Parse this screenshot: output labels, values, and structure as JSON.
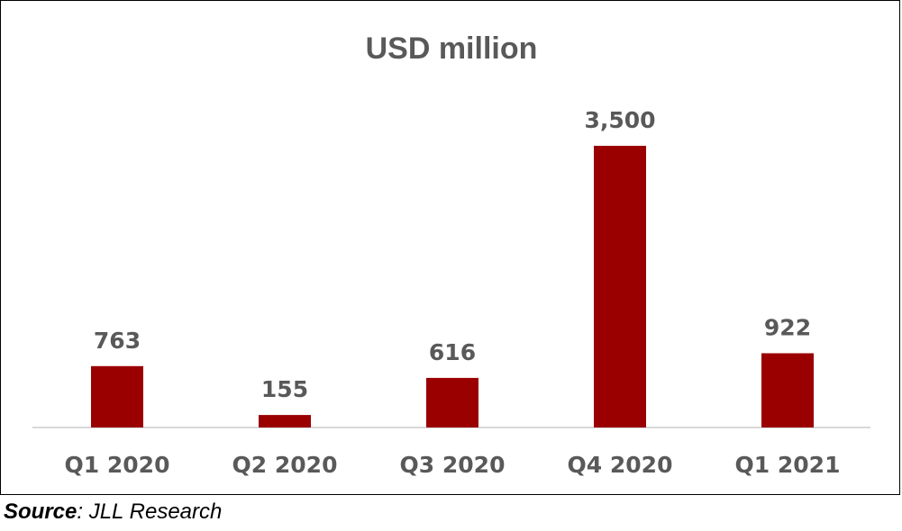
{
  "chart_data": {
    "type": "bar",
    "title": "USD million",
    "categories": [
      "Q1 2020",
      "Q2 2020",
      "Q3 2020",
      "Q4 2020",
      "Q1 2021"
    ],
    "values": [
      763,
      155,
      616,
      3500,
      922
    ],
    "data_labels": [
      "763",
      "155",
      "616",
      "3,500",
      "922"
    ],
    "xlabel": "",
    "ylabel": "",
    "ylim": [
      0,
      3500
    ],
    "grid": false,
    "legend": "none",
    "colors": {
      "bar": "#9b0000",
      "text": "#595959",
      "baseline": "#d9d9d9"
    }
  },
  "source": {
    "label": "Source",
    "text": ": JLL Research"
  }
}
